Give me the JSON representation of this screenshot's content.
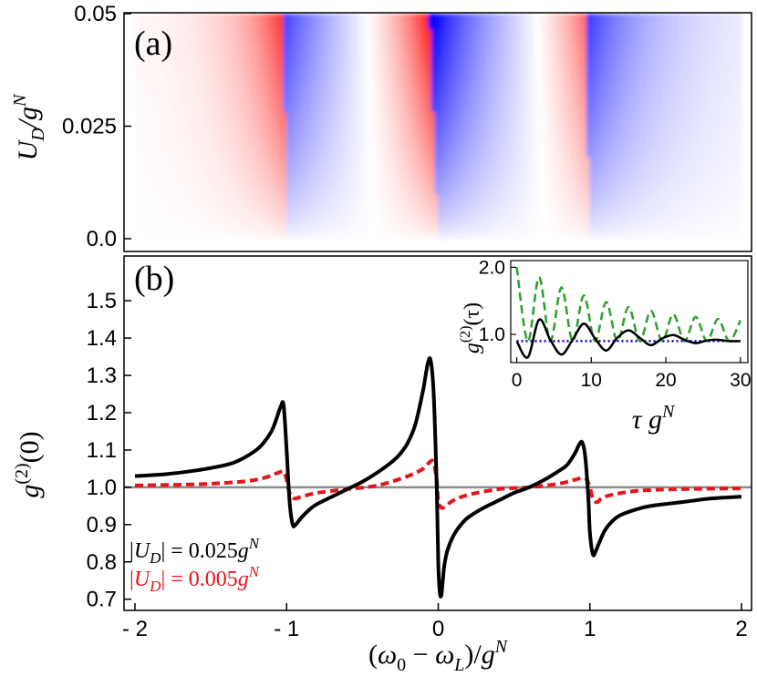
{
  "figure": {
    "panel_a_label": "(a)",
    "panel_b_label": "(b)"
  },
  "colors": {
    "black_curve": "#000000",
    "red_curve": "#e8141a",
    "green_curve": "#2ca02c",
    "blue_line": "#0000cc",
    "reference_line": "#8c8c8c",
    "heatmap_positive": "#ff0000",
    "heatmap_negative": "#0000ff"
  },
  "chart_data": [
    {
      "type": "heatmap",
      "panel": "(a)",
      "ylabel": "U_D/g^N",
      "xlim": [
        -2,
        2
      ],
      "ylim": [
        0,
        0.05
      ],
      "ytick_labels": [
        "0.0",
        "0.025",
        "0.05"
      ],
      "ytick_values": [
        0,
        0.025,
        0.05
      ],
      "colormap": "red (positive) - white - blue (negative)",
      "resonances": [
        {
          "x": -1,
          "x_at_top": -1.02,
          "x_at_bottom": -1.0,
          "strength": 0.8
        },
        {
          "x": 0,
          "x_at_top": -0.06,
          "x_at_bottom": 0.0,
          "strength": 1.0
        },
        {
          "x": 1,
          "x_at_top": 0.97,
          "x_at_bottom": 1.0,
          "strength": 0.7
        }
      ]
    },
    {
      "type": "line",
      "panel": "(b)",
      "xlabel": "(ω0 − ωL)/g^N",
      "ylabel": "g^(2)(0)",
      "xlim": [
        -2,
        2
      ],
      "ylim": [
        0.67,
        1.62
      ],
      "xtick_values": [
        -2,
        -1,
        0,
        1,
        2
      ],
      "xtick_labels": [
        "- 2",
        "- 1",
        "0",
        "1",
        "2"
      ],
      "ytick_values": [
        0.7,
        0.8,
        0.9,
        1.0,
        1.1,
        1.2,
        1.3,
        1.4,
        1.5
      ],
      "ytick_labels": [
        "0.7",
        "0.8",
        "0.9",
        "1.0",
        "1.1",
        "1.2",
        "1.3",
        "1.4",
        "1.5"
      ],
      "reference_line_y": 1.0,
      "series": [
        {
          "name": "|U_D| = 0.025g^N",
          "color": "#000000",
          "style": "solid",
          "x": [
            -2.0,
            -1.8,
            -1.6,
            -1.4,
            -1.3,
            -1.2,
            -1.15,
            -1.1,
            -1.07,
            -1.04,
            -1.02,
            -1.0,
            -0.98,
            -0.96,
            -0.94,
            -0.9,
            -0.85,
            -0.8,
            -0.7,
            -0.6,
            -0.5,
            -0.4,
            -0.3,
            -0.25,
            -0.2,
            -0.15,
            -0.1,
            -0.07,
            -0.05,
            -0.03,
            -0.01,
            0.0,
            0.01,
            0.02,
            0.03,
            0.04,
            0.06,
            0.1,
            0.15,
            0.2,
            0.3,
            0.4,
            0.5,
            0.6,
            0.7,
            0.8,
            0.85,
            0.9,
            0.93,
            0.95,
            0.97,
            0.99,
            1.0,
            1.02,
            1.04,
            1.06,
            1.1,
            1.15,
            1.2,
            1.3,
            1.4,
            1.6,
            1.8,
            2.0
          ],
          "y": [
            1.03,
            1.035,
            1.045,
            1.06,
            1.075,
            1.1,
            1.12,
            1.15,
            1.18,
            1.215,
            1.22,
            1.1,
            0.96,
            0.9,
            0.9,
            0.92,
            0.94,
            0.955,
            0.975,
            0.995,
            1.015,
            1.04,
            1.07,
            1.09,
            1.12,
            1.17,
            1.26,
            1.33,
            1.34,
            1.25,
            1.0,
            0.8,
            0.72,
            0.71,
            0.75,
            0.79,
            0.83,
            0.87,
            0.9,
            0.92,
            0.945,
            0.965,
            0.985,
            1.0,
            1.02,
            1.045,
            1.06,
            1.09,
            1.115,
            1.12,
            1.08,
            0.97,
            0.88,
            0.82,
            0.83,
            0.85,
            0.885,
            0.91,
            0.925,
            0.94,
            0.95,
            0.96,
            0.97,
            0.975
          ]
        },
        {
          "name": "|U_D| = 0.005g^N",
          "color": "#e8141a",
          "style": "dashed",
          "x": [
            -2.0,
            -1.6,
            -1.3,
            -1.15,
            -1.05,
            -1.02,
            -1.0,
            -0.98,
            -0.95,
            -0.9,
            -0.8,
            -0.6,
            -0.4,
            -0.2,
            -0.1,
            -0.05,
            -0.03,
            -0.01,
            0.0,
            0.02,
            0.05,
            0.1,
            0.2,
            0.4,
            0.6,
            0.8,
            0.9,
            0.95,
            0.98,
            1.0,
            1.02,
            1.05,
            1.1,
            1.3,
            1.6,
            2.0
          ],
          "y": [
            1.005,
            1.008,
            1.015,
            1.025,
            1.04,
            1.042,
            1.02,
            0.985,
            0.97,
            0.975,
            0.985,
            0.995,
            1.005,
            1.03,
            1.05,
            1.07,
            1.065,
            1.02,
            0.965,
            0.945,
            0.95,
            0.965,
            0.98,
            0.995,
            1.0,
            1.01,
            1.02,
            1.025,
            1.02,
            1.0,
            0.97,
            0.96,
            0.975,
            0.99,
            0.995,
            0.997
          ]
        }
      ]
    },
    {
      "type": "line",
      "panel": "(b) inset",
      "xlabel": "τ g^N",
      "ylabel": "g^(2)(τ)",
      "xlim": [
        -0.8,
        31
      ],
      "ylim": [
        0.58,
        2.1
      ],
      "xtick_values": [
        0,
        10,
        20,
        30
      ],
      "xtick_labels": [
        "0",
        "10",
        "20",
        "30"
      ],
      "ytick_values": [
        1.0,
        2.0
      ],
      "ytick_labels": [
        "1.0",
        "2.0"
      ],
      "series": [
        {
          "color": "#2ca02c",
          "style": "dashed",
          "x": [
            0.0,
            1.5,
            3.0,
            4.5,
            6.0,
            7.5,
            9.0,
            10.5,
            12.0,
            13.5,
            15.0,
            16.5,
            18.0,
            19.5,
            21.0,
            22.5,
            24.0,
            25.5,
            27.0,
            28.5,
            30.0
          ],
          "y": [
            2.0,
            0.9,
            1.85,
            0.9,
            1.7,
            0.9,
            1.58,
            0.9,
            1.48,
            0.9,
            1.41,
            0.9,
            1.35,
            0.9,
            1.3,
            0.9,
            1.26,
            0.9,
            1.23,
            0.9,
            1.21
          ]
        },
        {
          "color": "#000000",
          "style": "solid",
          "x": [
            0.0,
            1.5,
            3.0,
            4.5,
            6.0,
            7.5,
            9.0,
            10.5,
            12.0,
            13.5,
            15.0,
            16.5,
            18.0,
            19.5,
            21.0,
            22.5,
            24.0,
            25.5,
            27.0,
            28.5,
            30.0
          ],
          "y": [
            0.9,
            0.66,
            1.22,
            0.92,
            0.7,
            0.92,
            1.16,
            0.94,
            0.76,
            0.95,
            1.06,
            0.95,
            0.84,
            0.94,
            0.99,
            0.92,
            0.87,
            0.91,
            0.92,
            0.9,
            0.9
          ]
        },
        {
          "color": "#0000cc",
          "style": "dotted",
          "x": [
            0,
            30
          ],
          "y": [
            0.9,
            0.9
          ]
        }
      ]
    }
  ]
}
